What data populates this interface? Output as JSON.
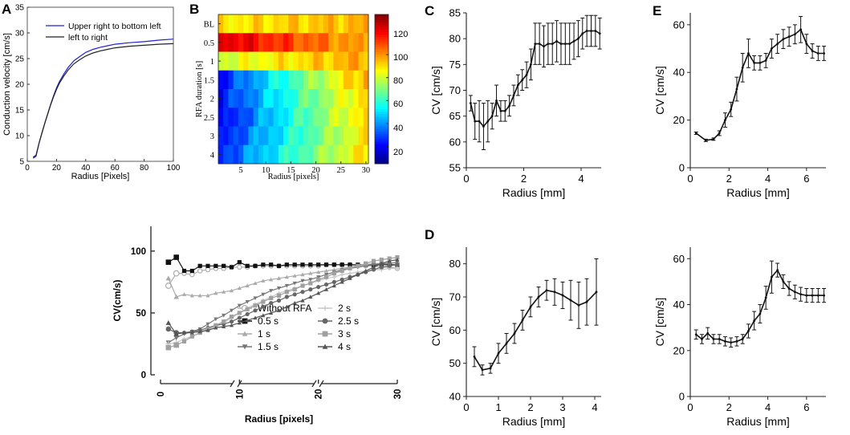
{
  "panel_letters": {
    "A": "A",
    "B": "B",
    "C": "C",
    "D": "D",
    "E": "E"
  },
  "colorbar_ticks": [
    "20",
    "40",
    "60",
    "80",
    "100",
    "120"
  ],
  "chart_data": [
    {
      "id": "A",
      "type": "line",
      "xlabel": "Radius [Pixels]",
      "ylabel": "Conduction velocity [cm/s]",
      "xlim": [
        0,
        100
      ],
      "ylim": [
        5,
        35
      ],
      "xticks": [
        0,
        20,
        40,
        60,
        80,
        100
      ],
      "yticks": [
        5,
        10,
        15,
        20,
        25,
        30,
        35
      ],
      "legend_position": "top-right",
      "series": [
        {
          "name": "Upper right to bottom left",
          "color": "#2222cc",
          "x": [
            4,
            6,
            8,
            10,
            12,
            14,
            16,
            18,
            20,
            22,
            25,
            28,
            32,
            36,
            40,
            45,
            50,
            55,
            60,
            70,
            80,
            90,
            100
          ],
          "values": [
            5.6,
            6.0,
            8.5,
            10.5,
            12.4,
            14.3,
            16.1,
            17.8,
            19.3,
            20.5,
            22.0,
            23.3,
            24.6,
            25.4,
            26.2,
            26.8,
            27.2,
            27.5,
            27.8,
            28.1,
            28.3,
            28.6,
            28.8
          ]
        },
        {
          "name": "left to right",
          "color": "#222222",
          "x": [
            4,
            6,
            8,
            10,
            12,
            14,
            16,
            18,
            20,
            22,
            25,
            28,
            32,
            36,
            40,
            45,
            50,
            55,
            60,
            70,
            80,
            90,
            100
          ],
          "values": [
            5.8,
            6.2,
            8.5,
            10.5,
            12.4,
            14.2,
            16.0,
            17.6,
            19.0,
            20.2,
            21.6,
            22.8,
            24.0,
            24.8,
            25.5,
            26.1,
            26.5,
            26.8,
            27.1,
            27.4,
            27.6,
            27.8,
            27.9
          ]
        }
      ]
    },
    {
      "id": "B",
      "type": "heatmap",
      "xlabel": "Radius [pixels]",
      "ylabel": "RFA duration [s]",
      "xlim": [
        0.5,
        30.5
      ],
      "xticks": [
        5,
        10,
        15,
        20,
        25,
        30
      ],
      "row_labels": [
        "BL",
        "0.5",
        "1",
        "1.5",
        "2",
        "2.5",
        "3",
        "4"
      ],
      "zlim": [
        5,
        135
      ],
      "colorbar_ticks": [
        20,
        40,
        60,
        80,
        100,
        120
      ],
      "rows_start_end": [
        [
          88,
          96
        ],
        [
          125,
          96
        ],
        [
          80,
          98
        ],
        [
          22,
          98
        ],
        [
          22,
          92
        ],
        [
          18,
          92
        ],
        [
          22,
          88
        ],
        [
          26,
          90
        ]
      ]
    },
    {
      "id": "F",
      "type": "line",
      "xlabel": "Radius [pixels]",
      "ylabel": "CV(cm/s)",
      "xlim": [
        0,
        30
      ],
      "ylim": [
        0,
        120
      ],
      "xticks": [
        0,
        10,
        20,
        30
      ],
      "yticks": [
        0,
        50,
        100
      ],
      "series": [
        {
          "name": "Without RFA",
          "color": "#b0b0b0",
          "marker": "open-circle",
          "values": [
            72,
            82,
            82,
            81,
            84,
            85,
            86,
            86,
            87,
            87,
            87,
            88,
            88,
            88,
            88,
            88,
            88,
            88,
            88,
            88,
            89,
            89,
            89,
            89,
            88,
            88,
            88,
            87,
            87,
            86
          ]
        },
        {
          "name": "0.5 s",
          "color": "#111111",
          "marker": "square",
          "values": [
            91,
            95,
            84,
            84,
            88,
            88,
            88,
            88,
            87,
            91,
            88,
            88,
            89,
            89,
            88,
            89,
            89,
            89,
            89,
            89,
            89,
            89,
            89,
            89,
            89,
            89,
            89,
            89,
            89,
            89
          ]
        },
        {
          "name": "1 s",
          "color": "#aaaaaa",
          "marker": "triangle",
          "values": [
            78,
            63,
            65,
            64,
            64,
            64,
            66,
            67,
            68,
            70,
            72,
            74,
            76,
            77,
            78,
            79,
            80,
            81,
            82,
            83,
            84,
            85,
            86,
            87,
            88,
            89,
            90,
            90,
            90,
            91
          ]
        },
        {
          "name": "1.5 s",
          "color": "#777777",
          "marker": "triangle-down",
          "values": [
            26,
            30,
            33,
            35,
            37,
            41,
            45,
            48,
            52,
            56,
            59,
            62,
            65,
            68,
            70,
            72,
            74,
            76,
            77,
            79,
            81,
            83,
            85,
            86,
            87,
            88,
            89,
            90,
            90,
            91
          ]
        },
        {
          "name": "2 s",
          "color": "#c8c8c8",
          "marker": "plus",
          "values": [
            25,
            26,
            29,
            31,
            34,
            36,
            39,
            42,
            46,
            50,
            54,
            57,
            60,
            63,
            66,
            68,
            70,
            72,
            74,
            76,
            78,
            79,
            81,
            82,
            83,
            84,
            85,
            85,
            86,
            86
          ]
        },
        {
          "name": "2.5 s",
          "color": "#666666",
          "marker": "circle",
          "values": [
            37,
            34,
            34,
            35,
            36,
            38,
            40,
            41,
            43,
            46,
            49,
            52,
            55,
            58,
            60,
            63,
            65,
            67,
            69,
            71,
            73,
            75,
            77,
            79,
            81,
            83,
            85,
            87,
            88,
            89
          ]
        },
        {
          "name": "3 s",
          "color": "#a0a0a0",
          "marker": "square",
          "values": [
            22,
            24,
            27,
            31,
            34,
            37,
            40,
            43,
            47,
            50,
            53,
            56,
            59,
            62,
            64,
            67,
            69,
            72,
            74,
            77,
            79,
            82,
            84,
            86,
            88,
            90,
            92,
            93,
            94,
            95
          ]
        },
        {
          "name": "4 s",
          "color": "#555555",
          "marker": "triangle",
          "values": [
            42,
            33,
            34,
            34,
            35,
            36,
            38,
            39,
            40,
            42,
            44,
            46,
            48,
            50,
            52,
            55,
            58,
            60,
            63,
            66,
            69,
            72,
            75,
            78,
            81,
            84,
            87,
            90,
            92,
            93
          ]
        }
      ]
    },
    {
      "id": "C",
      "type": "line",
      "errorbars": true,
      "xlabel": "Radius [mm]",
      "ylabel": "CV [cm/s]",
      "xlim": [
        0,
        4.7
      ],
      "ylim": [
        55,
        85
      ],
      "xticks": [
        0,
        2,
        4
      ],
      "yticks": [
        55,
        60,
        65,
        70,
        75,
        80,
        85
      ],
      "x": [
        0.15,
        0.3,
        0.45,
        0.6,
        0.75,
        0.9,
        1.05,
        1.2,
        1.35,
        1.5,
        1.65,
        1.8,
        1.95,
        2.1,
        2.25,
        2.4,
        2.55,
        2.7,
        2.85,
        3.0,
        3.15,
        3.3,
        3.45,
        3.6,
        3.75,
        3.9,
        4.05,
        4.2,
        4.35,
        4.5,
        4.65
      ],
      "values": [
        67.5,
        64,
        64,
        63,
        64,
        65,
        68,
        66,
        66,
        67,
        69,
        71,
        72,
        73,
        75,
        79,
        79,
        78.5,
        79,
        79,
        79.5,
        79,
        79,
        79,
        79.5,
        80,
        81,
        81.5,
        81.5,
        81.5,
        81
      ],
      "errors": [
        1.5,
        3.5,
        4,
        4.5,
        4,
        2.5,
        3,
        2,
        2,
        2,
        2,
        2,
        2,
        2.5,
        3,
        4,
        4,
        4,
        4,
        4,
        4,
        4,
        4,
        4,
        3.5,
        3.5,
        3,
        3,
        3,
        3,
        3
      ]
    },
    {
      "id": "E",
      "type": "line",
      "errorbars": true,
      "xlabel": "Radius [mm]",
      "ylabel": "CV [cm/s]",
      "xlim": [
        0,
        7
      ],
      "ylim": [
        0,
        65
      ],
      "xticks": [
        0,
        2,
        4,
        6
      ],
      "yticks": [
        0,
        20,
        40,
        60
      ],
      "x": [
        0.3,
        0.8,
        1.2,
        1.5,
        1.8,
        2.1,
        2.4,
        2.7,
        3.0,
        3.3,
        3.6,
        3.9,
        4.2,
        4.5,
        4.8,
        5.1,
        5.4,
        5.7,
        6.0,
        6.3,
        6.6,
        6.9
      ],
      "values": [
        14.5,
        11.5,
        12,
        14.5,
        20,
        24.5,
        33,
        42,
        48,
        44,
        44,
        45,
        50,
        52,
        54,
        55,
        56,
        58,
        52,
        49,
        48,
        48
      ],
      "errors": [
        0.5,
        0.5,
        0.5,
        1,
        3,
        3,
        5,
        6,
        6,
        3,
        3,
        3,
        4,
        4,
        4,
        4,
        4,
        5.5,
        4,
        3,
        3,
        3
      ]
    },
    {
      "id": "D",
      "type": "line",
      "errorbars": true,
      "xlabel": "Radius [mm]",
      "ylabel": "CV [cm/s]",
      "xlim": [
        0,
        4.2
      ],
      "ylim": [
        40,
        85
      ],
      "xticks": [
        0,
        1,
        2,
        3,
        4
      ],
      "yticks": [
        40,
        50,
        60,
        70,
        80
      ],
      "x": [
        0.25,
        0.5,
        0.75,
        1.0,
        1.25,
        1.5,
        1.75,
        2.0,
        2.25,
        2.5,
        2.75,
        3.0,
        3.25,
        3.5,
        3.75,
        4.05
      ],
      "values": [
        52,
        48,
        48.5,
        53,
        56,
        59,
        63,
        67,
        70,
        72,
        71.5,
        70.5,
        69,
        67.5,
        68.5,
        71.5
      ],
      "errors": [
        3,
        1.5,
        1.5,
        3,
        3,
        3,
        3,
        3,
        3,
        3,
        4,
        4,
        6,
        7,
        7,
        10
      ]
    },
    {
      "id": "G",
      "type": "line",
      "errorbars": true,
      "xlabel": "Radius [mm]",
      "ylabel": "CV [cm/s]",
      "xlim": [
        0,
        7
      ],
      "ylim": [
        0,
        65
      ],
      "xticks": [
        0,
        2,
        4,
        6
      ],
      "yticks": [
        0,
        20,
        40,
        60
      ],
      "x": [
        0.3,
        0.6,
        0.9,
        1.2,
        1.5,
        1.8,
        2.1,
        2.4,
        2.7,
        3.0,
        3.3,
        3.6,
        3.9,
        4.2,
        4.5,
        4.8,
        5.1,
        5.4,
        5.7,
        6.0,
        6.3,
        6.6,
        6.9
      ],
      "values": [
        27,
        25,
        27.5,
        25,
        25,
        24,
        23.5,
        24,
        25,
        28.5,
        33,
        36,
        43,
        52,
        55,
        50,
        47,
        45.5,
        44.5,
        44,
        44,
        44,
        44
      ],
      "errors": [
        2,
        2,
        2.5,
        2,
        2,
        2,
        2,
        2,
        2,
        3,
        4,
        4,
        5,
        7,
        3,
        3,
        3,
        3,
        3,
        3,
        3,
        3,
        3
      ]
    }
  ]
}
